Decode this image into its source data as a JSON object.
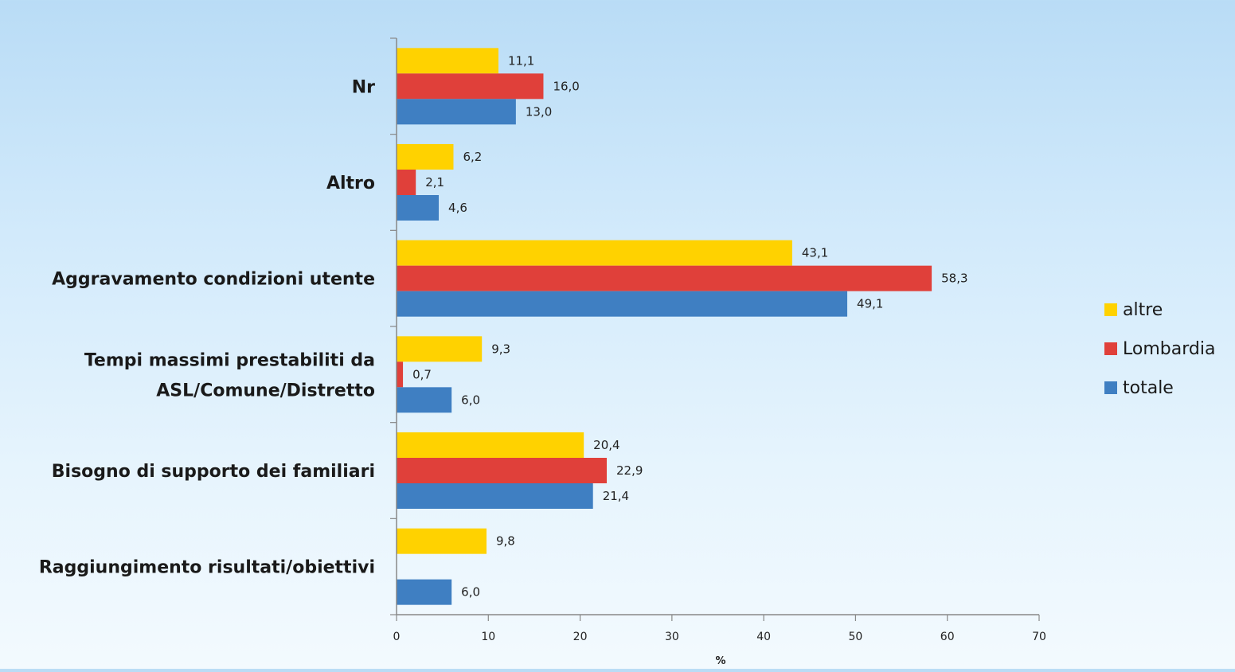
{
  "chart_data": {
    "type": "bar",
    "orientation": "horizontal",
    "categories": [
      "Nr",
      "Altro",
      "Aggravamento condizioni utente",
      "Tempi massimi prestabiliti da ASL/Comune/Distretto",
      "Bisogno di supporto dei familiari",
      "Raggiungimento risultati/obiettivi"
    ],
    "category_label_lines": [
      [
        "Nr"
      ],
      [
        "Altro"
      ],
      [
        "Aggravamento condizioni utente"
      ],
      [
        "Tempi massimi prestabiliti da",
        "ASL/Comune/Distretto"
      ],
      [
        "Bisogno di supporto dei familiari"
      ],
      [
        "Raggiungimento risultati/obiettivi"
      ]
    ],
    "series": [
      {
        "name": "altre",
        "color": "#ffd200",
        "values": [
          11.1,
          6.2,
          43.1,
          9.3,
          20.4,
          9.8
        ],
        "labels": [
          "11,1",
          "6,2",
          "43,1",
          "9,3",
          "20,4",
          "9,8"
        ]
      },
      {
        "name": "Lombardia",
        "color": "#e0403a",
        "values": [
          16.0,
          2.1,
          58.3,
          0.7,
          22.9,
          null
        ],
        "labels": [
          "16,0",
          "2,1",
          "58,3",
          "0,7",
          "22,9",
          null
        ]
      },
      {
        "name": "totale",
        "color": "#3f7fc2",
        "values": [
          13.0,
          4.6,
          49.1,
          6.0,
          21.4,
          6.0
        ],
        "labels": [
          "13,0",
          "4,6",
          "49,1",
          "6,0",
          "21,4",
          "6,0"
        ]
      }
    ],
    "xlim": [
      0,
      70
    ],
    "xticks": [
      0,
      10,
      20,
      30,
      40,
      50,
      60,
      70
    ],
    "xlabel": "%",
    "title": "",
    "grid": false,
    "legend_position": "right"
  }
}
